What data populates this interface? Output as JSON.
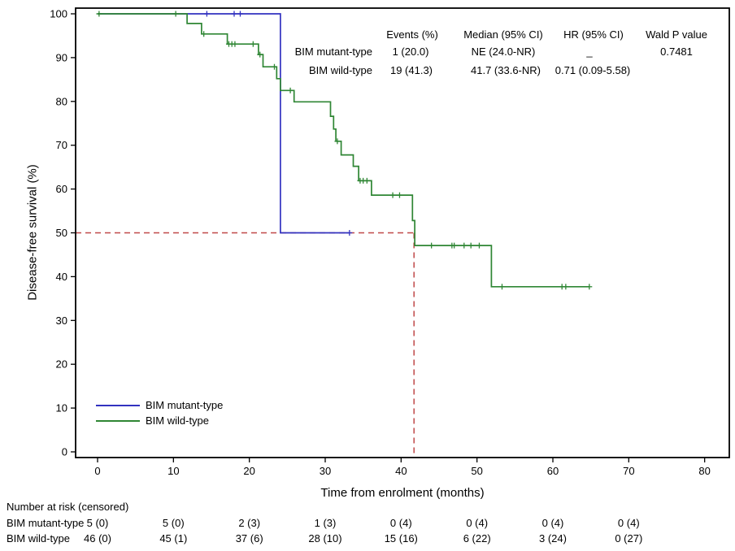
{
  "figure": {
    "y_axis_title": "Disease-free survival (%)",
    "x_axis_title": "Time from enrolment (months)"
  },
  "stats_table": {
    "headers": {
      "events": "Events (%)",
      "median": "Median (95% CI)",
      "hr": "HR (95% CI)",
      "wald": "Wald P value"
    },
    "rows": [
      {
        "label": "BIM mutant-type",
        "events": "1 (20.0)",
        "median": "NE (24.0-NR)",
        "hr": "_",
        "wald": "0.7481"
      },
      {
        "label": "BIM wild-type",
        "events": "19 (41.3)",
        "median": "41.7 (33.6-NR)",
        "hr": "0.71 (0.09-5.58)",
        "wald": ""
      }
    ]
  },
  "legend": {
    "items": [
      {
        "label": "BIM mutant-type",
        "color": "#3232c0"
      },
      {
        "label": "BIM wild-type",
        "color": "#2f8634"
      }
    ]
  },
  "risk_table": {
    "title": "Number at risk (censored)",
    "times": [
      0,
      10,
      20,
      30,
      40,
      50,
      60,
      70
    ],
    "rows": [
      {
        "label": "BIM mutant-type",
        "values": [
          "5 (0)",
          "5 (0)",
          "2 (3)",
          "1 (3)",
          "0 (4)",
          "0 (4)",
          "0 (4)",
          "0 (4)"
        ]
      },
      {
        "label": "BIM wild-type",
        "values": [
          "46 (0)",
          "45 (1)",
          "37 (6)",
          "28 (10)",
          "15 (16)",
          "6 (22)",
          "3 (24)",
          "0 (27)"
        ]
      }
    ]
  },
  "chart_data": {
    "type": "line",
    "subtype": "kaplan-meier-step",
    "title": "",
    "xlabel": "Time from enrolment (months)",
    "ylabel": "Disease-free survival (%)",
    "xlim": [
      0,
      80
    ],
    "ylim": [
      0,
      100
    ],
    "xticks": [
      0,
      10,
      20,
      30,
      40,
      50,
      60,
      70,
      80
    ],
    "yticks": [
      0,
      10,
      20,
      30,
      40,
      50,
      60,
      70,
      80,
      90,
      100
    ],
    "grid": false,
    "legend_position": "lower-left",
    "reference_lines": [
      {
        "type": "horizontal",
        "at": 50,
        "to_x": 41.7,
        "color": "#c04848",
        "style": "dashed"
      },
      {
        "type": "vertical",
        "at": 41.7,
        "to_y": 50,
        "color": "#c04848",
        "style": "dashed"
      }
    ],
    "series": [
      {
        "name": "BIM mutant-type",
        "color": "#3232c0",
        "step_points": [
          [
            0,
            100
          ],
          [
            24.1,
            100
          ],
          [
            24.1,
            50
          ],
          [
            33.2,
            50
          ]
        ],
        "censors": [
          [
            14.4,
            100
          ],
          [
            18.0,
            100
          ],
          [
            18.8,
            100
          ],
          [
            33.2,
            50
          ]
        ]
      },
      {
        "name": "BIM wild-type",
        "color": "#2f8634",
        "step_points": [
          [
            0,
            100
          ],
          [
            11.8,
            100
          ],
          [
            11.8,
            97.8
          ],
          [
            13.7,
            97.8
          ],
          [
            13.7,
            95.4
          ],
          [
            17.1,
            95.4
          ],
          [
            17.1,
            93.1
          ],
          [
            21.2,
            93.1
          ],
          [
            21.2,
            90.7
          ],
          [
            21.8,
            90.7
          ],
          [
            21.8,
            87.9
          ],
          [
            23.6,
            87.9
          ],
          [
            23.6,
            85.2
          ],
          [
            24.1,
            85.2
          ],
          [
            24.1,
            82.5
          ],
          [
            25.9,
            82.5
          ],
          [
            25.9,
            79.9
          ],
          [
            30.7,
            79.9
          ],
          [
            30.7,
            76.6
          ],
          [
            31.1,
            76.6
          ],
          [
            31.1,
            73.7
          ],
          [
            31.4,
            73.7
          ],
          [
            31.4,
            70.9
          ],
          [
            32.1,
            70.9
          ],
          [
            32.1,
            67.8
          ],
          [
            33.7,
            67.8
          ],
          [
            33.7,
            65.2
          ],
          [
            34.4,
            65.2
          ],
          [
            34.4,
            61.9
          ],
          [
            36.1,
            61.9
          ],
          [
            36.1,
            58.6
          ],
          [
            41.5,
            58.6
          ],
          [
            41.5,
            52.8
          ],
          [
            41.8,
            52.8
          ],
          [
            41.8,
            47.1
          ],
          [
            51.9,
            47.1
          ],
          [
            51.9,
            37.7
          ],
          [
            64.8,
            37.7
          ]
        ],
        "censors": [
          [
            0.2,
            100
          ],
          [
            10.3,
            100
          ],
          [
            14.0,
            95.4
          ],
          [
            17.3,
            93.1
          ],
          [
            17.7,
            93.1
          ],
          [
            18.1,
            93.1
          ],
          [
            20.5,
            93.1
          ],
          [
            21.4,
            90.7
          ],
          [
            23.3,
            87.9
          ],
          [
            25.4,
            82.5
          ],
          [
            31.6,
            70.9
          ],
          [
            34.6,
            61.9
          ],
          [
            35.0,
            61.9
          ],
          [
            35.5,
            61.9
          ],
          [
            38.9,
            58.6
          ],
          [
            39.8,
            58.6
          ],
          [
            44.0,
            47.1
          ],
          [
            46.7,
            47.1
          ],
          [
            47.0,
            47.1
          ],
          [
            48.3,
            47.1
          ],
          [
            49.2,
            47.1
          ],
          [
            50.3,
            47.1
          ],
          [
            53.3,
            37.7
          ],
          [
            61.2,
            37.7
          ],
          [
            61.7,
            37.7
          ],
          [
            64.8,
            37.7
          ]
        ]
      }
    ]
  }
}
